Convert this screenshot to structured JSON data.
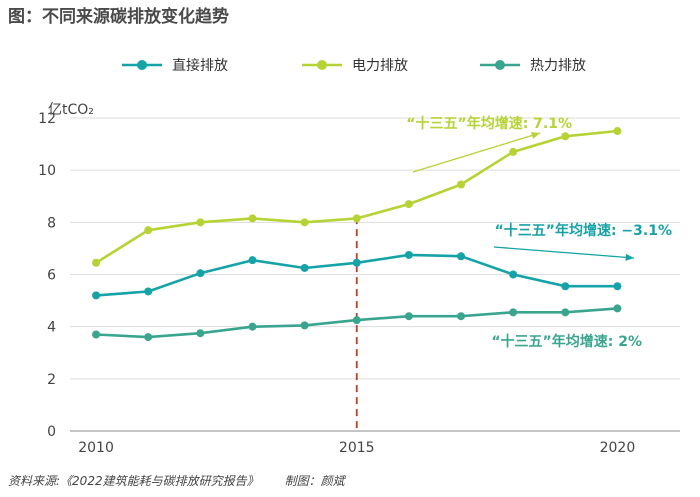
{
  "header": {
    "title": "图：不同来源碳排放变化趋势"
  },
  "footer": {
    "source": "资料来源:《2022建筑能耗与碳排放研究报告》",
    "credit": "制图：颜斌"
  },
  "chart_data": {
    "type": "line",
    "ylabel": "亿tCO₂",
    "ylim": [
      0,
      12
    ],
    "yticks": [
      "0",
      "2",
      "4",
      "6",
      "8",
      "10",
      "12"
    ],
    "xlim": [
      2009.5,
      2021.2
    ],
    "xticks": [
      "2010",
      "2015",
      "2020"
    ],
    "x": [
      2010,
      2011,
      2012,
      2013,
      2014,
      2015,
      2016,
      2017,
      2018,
      2019,
      2020
    ],
    "grid": true,
    "legend_position": "top",
    "reference_line": {
      "x": 2015,
      "color": "#c0392b",
      "style": "dashed"
    },
    "series": [
      {
        "name": "直接排放",
        "color": "#16a3a8",
        "values": [
          5.2,
          5.35,
          6.05,
          6.55,
          6.25,
          6.45,
          6.75,
          6.7,
          6.0,
          5.55,
          5.55
        ]
      },
      {
        "name": "电力排放",
        "color": "#b5d334",
        "values": [
          6.45,
          7.7,
          8.0,
          8.15,
          8.0,
          8.15,
          8.7,
          9.45,
          10.7,
          11.3,
          11.5
        ]
      },
      {
        "name": "热力排放",
        "color": "#3aa58f",
        "values": [
          3.7,
          3.6,
          3.75,
          4.0,
          4.05,
          4.25,
          4.4,
          4.4,
          4.55,
          4.55,
          4.7
        ]
      }
    ],
    "annotations": [
      {
        "text": "“十三五”年均增速: 7.1%",
        "color": "#b5d334"
      },
      {
        "text": "“十三五”年均增速: −3.1%",
        "color": "#16a3a8"
      },
      {
        "text": "“十三五”年均增速: 2%",
        "color": "#3aa58f"
      }
    ]
  }
}
